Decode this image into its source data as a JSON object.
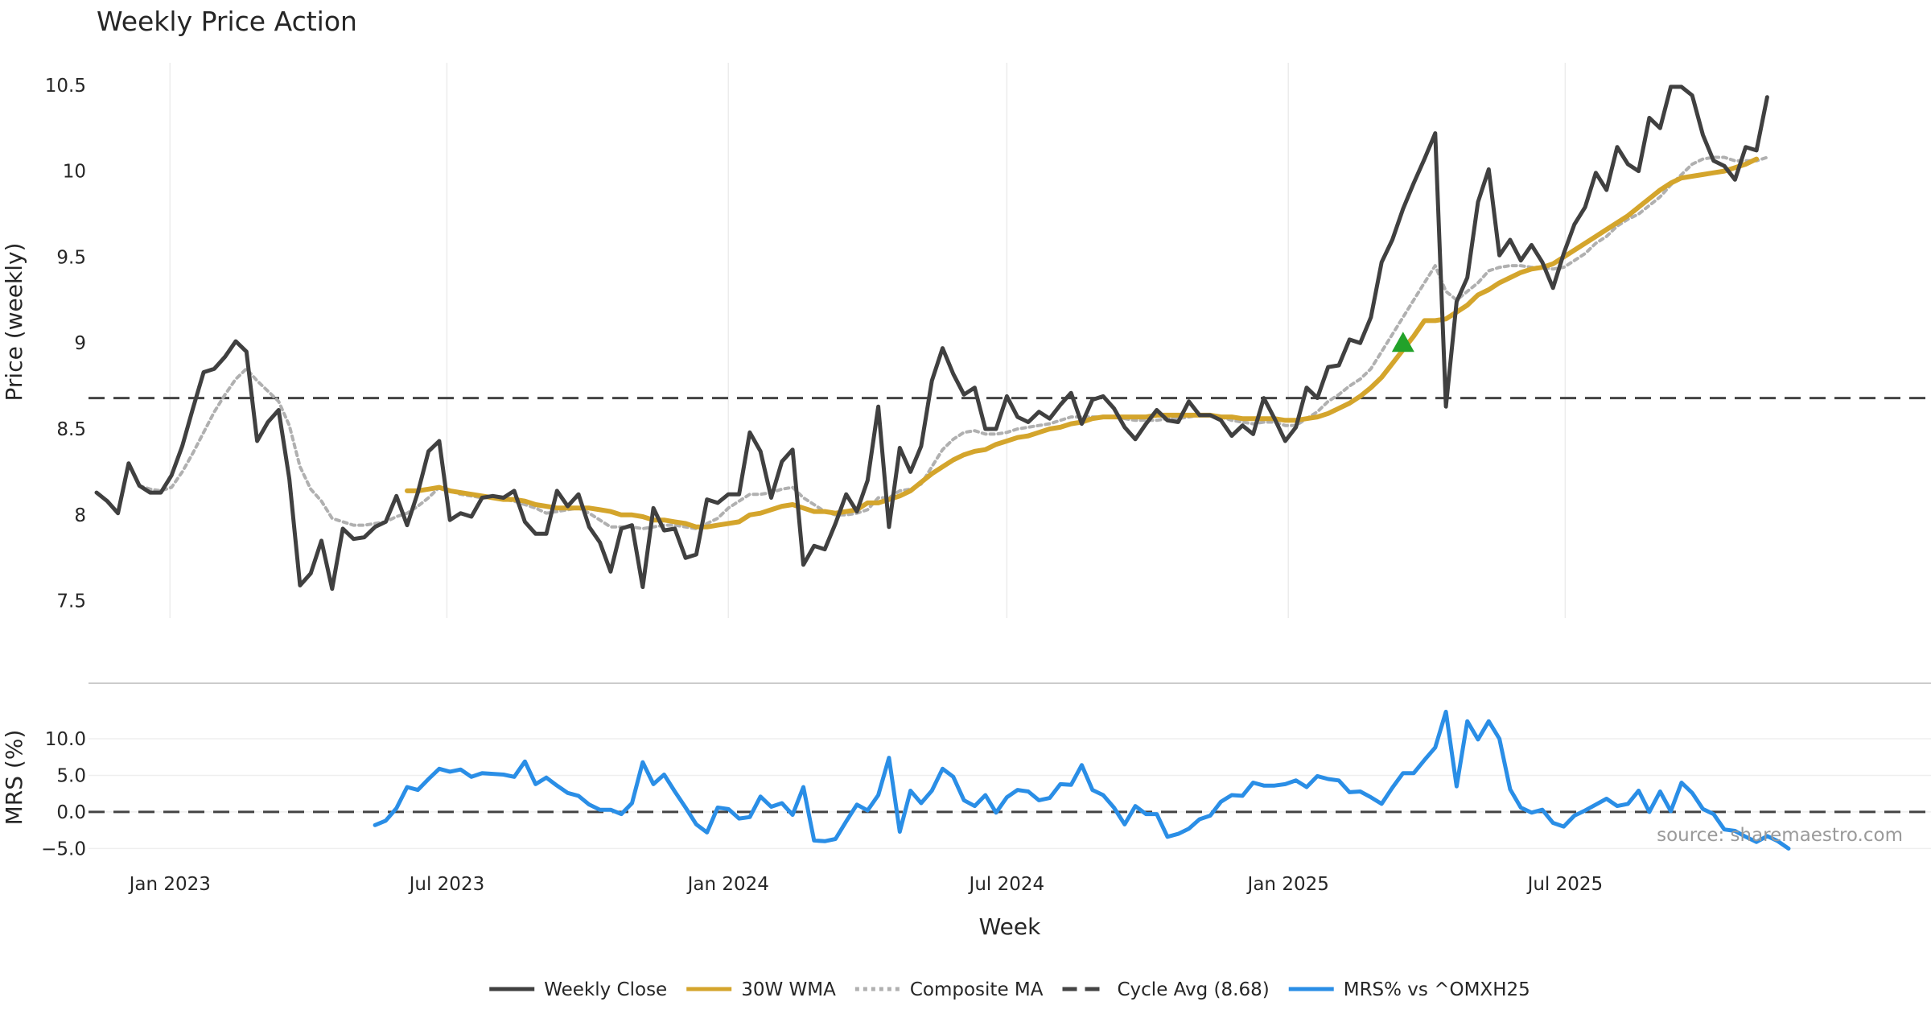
{
  "chart_data": {
    "type": "line",
    "title": "Weekly Price Action",
    "xlabel": "Week",
    "x_start": "2022-11-14",
    "x_ticks": [
      "Jan 2023",
      "Jul 2023",
      "Jan 2024",
      "Jul 2024",
      "Jan 2025",
      "Jul 2025"
    ],
    "watermark": "source: sharemaestro.com",
    "panels": {
      "price": {
        "ylabel": "Price (weekly)",
        "ylim": [
          7.4,
          10.63
        ],
        "yticks": [
          7.5,
          8,
          8.5,
          9,
          9.5,
          10,
          10.5
        ],
        "ytick_labels": [
          "7.5",
          "8",
          "8.5",
          "9",
          "9.5",
          "10",
          "10.5"
        ],
        "cycle_avg": 8.68
      },
      "mrs": {
        "ylabel": "MRS (%)",
        "ylim": [
          -6.5,
          15.5
        ],
        "yticks": [
          -5,
          0,
          5,
          10
        ],
        "ytick_labels": [
          "−5.0",
          "0.0",
          "5.0",
          "10.0"
        ],
        "zero_line": 0
      }
    },
    "signal_marker": {
      "type": "buy-triangle",
      "week_index": 122,
      "value": 9.0,
      "color": "#22a22a"
    },
    "legend": [
      {
        "label": "Weekly Close",
        "color": "#404040",
        "style": "solid"
      },
      {
        "label": "30W WMA",
        "color": "#d4a52c",
        "style": "solid"
      },
      {
        "label": "Composite MA",
        "color": "#b0b0b0",
        "style": "dotted"
      },
      {
        "label": "Cycle Avg (8.68)",
        "color": "#444444",
        "style": "dashed"
      },
      {
        "label": "MRS% vs ^OMXH25",
        "color": "#2a8ee6",
        "style": "solid"
      }
    ],
    "series": [
      {
        "name": "Weekly Close",
        "color": "#404040",
        "values": [
          8.13,
          8.08,
          8.01,
          8.3,
          8.17,
          8.13,
          8.13,
          8.23,
          8.4,
          8.62,
          8.83,
          8.85,
          8.92,
          9.01,
          8.95,
          8.43,
          8.54,
          8.61,
          8.21,
          7.59,
          7.66,
          7.85,
          7.57,
          7.92,
          7.86,
          7.87,
          7.93,
          7.96,
          8.11,
          7.94,
          8.13,
          8.37,
          8.43,
          7.97,
          8.01,
          7.99,
          8.1,
          8.11,
          8.1,
          8.14,
          7.96,
          7.89,
          7.89,
          8.14,
          8.05,
          8.12,
          7.93,
          7.84,
          7.67,
          7.92,
          7.94,
          7.58,
          8.04,
          7.91,
          7.92,
          7.75,
          7.77,
          8.09,
          8.07,
          8.12,
          8.12,
          8.48,
          8.37,
          8.1,
          8.31,
          8.38,
          7.71,
          7.82,
          7.8,
          7.95,
          8.12,
          8.02,
          8.2,
          8.63,
          7.93,
          8.39,
          8.25,
          8.4,
          8.78,
          8.97,
          8.82,
          8.7,
          8.74,
          8.5,
          8.5,
          8.69,
          8.57,
          8.54,
          8.6,
          8.56,
          8.64,
          8.71,
          8.53,
          8.67,
          8.69,
          8.62,
          8.51,
          8.44,
          8.53,
          8.61,
          8.55,
          8.54,
          8.66,
          8.58,
          8.58,
          8.55,
          8.46,
          8.52,
          8.47,
          8.68,
          8.56,
          8.43,
          8.51,
          8.74,
          8.68,
          8.86,
          8.87,
          9.02,
          9.0,
          9.15,
          9.47,
          9.6,
          9.78,
          9.93,
          10.07,
          10.22,
          8.63,
          9.24,
          9.38,
          9.82,
          10.01,
          9.51,
          9.6,
          9.48,
          9.57,
          9.47,
          9.32,
          9.52,
          9.69,
          9.79,
          9.99,
          9.89,
          10.14,
          10.04,
          10.0,
          10.31,
          10.25,
          10.49,
          10.49,
          10.44,
          10.21,
          10.06,
          10.03,
          9.95,
          10.14,
          10.12,
          10.43
        ]
      },
      {
        "name": "30W WMA",
        "color": "#d4a52c",
        "start_index": 29,
        "values": [
          8.14,
          8.14,
          8.15,
          8.16,
          8.14,
          8.13,
          8.12,
          8.11,
          8.1,
          8.09,
          8.09,
          8.08,
          8.06,
          8.05,
          8.04,
          8.04,
          8.04,
          8.04,
          8.03,
          8.02,
          8.0,
          8.0,
          7.99,
          7.97,
          7.97,
          7.96,
          7.95,
          7.93,
          7.93,
          7.94,
          7.95,
          7.96,
          8.0,
          8.01,
          8.03,
          8.05,
          8.06,
          8.04,
          8.02,
          8.02,
          8.01,
          8.02,
          8.03,
          8.07,
          8.07,
          8.09,
          8.11,
          8.14,
          8.19,
          8.24,
          8.28,
          8.32,
          8.35,
          8.37,
          8.38,
          8.41,
          8.43,
          8.45,
          8.46,
          8.48,
          8.5,
          8.51,
          8.53,
          8.54,
          8.56,
          8.57,
          8.57,
          8.57,
          8.57,
          8.57,
          8.58,
          8.58,
          8.58,
          8.58,
          8.58,
          8.58,
          8.57,
          8.57,
          8.56,
          8.56,
          8.56,
          8.56,
          8.55,
          8.55,
          8.56,
          8.57,
          8.59,
          8.62,
          8.65,
          8.69,
          8.74,
          8.8,
          8.88,
          8.96,
          9.04,
          9.13,
          9.13,
          9.14,
          9.18,
          9.22,
          9.28,
          9.31,
          9.35,
          9.38,
          9.41,
          9.43,
          9.44,
          9.46,
          9.5,
          9.54,
          9.58,
          9.62,
          9.66,
          9.7,
          9.74,
          9.79,
          9.84,
          9.89,
          9.93,
          9.96,
          9.97,
          9.98,
          9.99,
          10.0,
          10.02,
          10.04,
          10.07
        ]
      },
      {
        "name": "Composite MA",
        "color": "#b0b0b0",
        "values": [
          null,
          null,
          null,
          null,
          8.17,
          8.15,
          8.14,
          8.16,
          8.25,
          8.36,
          8.48,
          8.6,
          8.7,
          8.79,
          8.85,
          8.78,
          8.72,
          8.66,
          8.52,
          8.28,
          8.15,
          8.08,
          7.98,
          7.96,
          7.94,
          7.94,
          7.95,
          7.96,
          7.99,
          8.01,
          8.05,
          8.1,
          8.16,
          8.14,
          8.12,
          8.11,
          8.1,
          8.1,
          8.09,
          8.08,
          8.06,
          8.04,
          8.01,
          8.02,
          8.03,
          8.04,
          8.01,
          7.97,
          7.93,
          7.93,
          7.93,
          7.92,
          7.93,
          7.94,
          7.94,
          7.93,
          7.92,
          7.95,
          7.98,
          8.04,
          8.08,
          8.12,
          8.12,
          8.13,
          8.15,
          8.16,
          8.1,
          8.06,
          8.02,
          8.0,
          8.0,
          8.01,
          8.03,
          8.1,
          8.1,
          8.14,
          8.15,
          8.18,
          8.28,
          8.38,
          8.44,
          8.48,
          8.49,
          8.47,
          8.47,
          8.48,
          8.5,
          8.51,
          8.52,
          8.53,
          8.55,
          8.57,
          8.57,
          8.57,
          8.57,
          8.57,
          8.56,
          8.55,
          8.55,
          8.55,
          8.56,
          8.56,
          8.57,
          8.58,
          8.58,
          8.57,
          8.55,
          8.54,
          8.53,
          8.54,
          8.54,
          8.52,
          8.52,
          8.56,
          8.6,
          8.66,
          8.7,
          8.75,
          8.79,
          8.85,
          8.95,
          9.05,
          9.15,
          9.25,
          9.35,
          9.45,
          9.3,
          9.25,
          9.3,
          9.35,
          9.42,
          9.44,
          9.45,
          9.45,
          9.44,
          9.44,
          9.43,
          9.44,
          9.48,
          9.52,
          9.58,
          9.62,
          9.68,
          9.72,
          9.75,
          9.8,
          9.85,
          9.92,
          9.98,
          10.04,
          10.07,
          10.08,
          10.08,
          10.06,
          10.06,
          10.06,
          10.08
        ]
      },
      {
        "name": "MRS% vs ^OMXH25",
        "color": "#2a8ee6",
        "panel": "mrs",
        "start_index": 26,
        "values": [
          -1.8,
          -1.2,
          0.5,
          3.4,
          3.0,
          4.5,
          5.9,
          5.5,
          5.8,
          4.8,
          5.3,
          5.2,
          5.1,
          4.8,
          6.9,
          3.8,
          4.7,
          3.6,
          2.6,
          2.2,
          1.0,
          0.3,
          0.3,
          -0.3,
          1.2,
          6.8,
          3.8,
          5.1,
          2.8,
          0.6,
          -1.7,
          -2.8,
          0.6,
          0.4,
          -0.9,
          -0.7,
          2.1,
          0.7,
          1.2,
          -0.4,
          3.4,
          -3.9,
          -4.0,
          -3.7,
          -1.3,
          1.0,
          0.2,
          2.3,
          7.4,
          -2.7,
          2.9,
          1.2,
          2.9,
          5.9,
          4.8,
          1.6,
          0.8,
          2.3,
          -0.1,
          2.0,
          3.0,
          2.8,
          1.6,
          1.9,
          3.8,
          3.7,
          6.4,
          3.0,
          2.3,
          0.6,
          -1.7,
          0.8,
          -0.3,
          -0.3,
          -3.4,
          -3.0,
          -2.3,
          -1.0,
          -0.5,
          1.4,
          2.3,
          2.2,
          4.0,
          3.6,
          3.6,
          3.8,
          4.3,
          3.4,
          4.9,
          4.5,
          4.3,
          2.7,
          2.8,
          2.0,
          1.1,
          3.3,
          5.3,
          5.3,
          7.1,
          8.8,
          13.7,
          3.5,
          12.4,
          9.9,
          12.4,
          10.0,
          3.1,
          0.6,
          -0.1,
          0.3,
          -1.5,
          -2.0,
          -0.5,
          0.2,
          1.0,
          1.8,
          0.8,
          1.1,
          2.9,
          0.0,
          2.8,
          0.1,
          4.0,
          2.6,
          0.4,
          -0.3,
          -2.4,
          -2.6,
          -3.4,
          -4.1,
          -3.3,
          -4.0,
          -5.0
        ]
      }
    ]
  }
}
